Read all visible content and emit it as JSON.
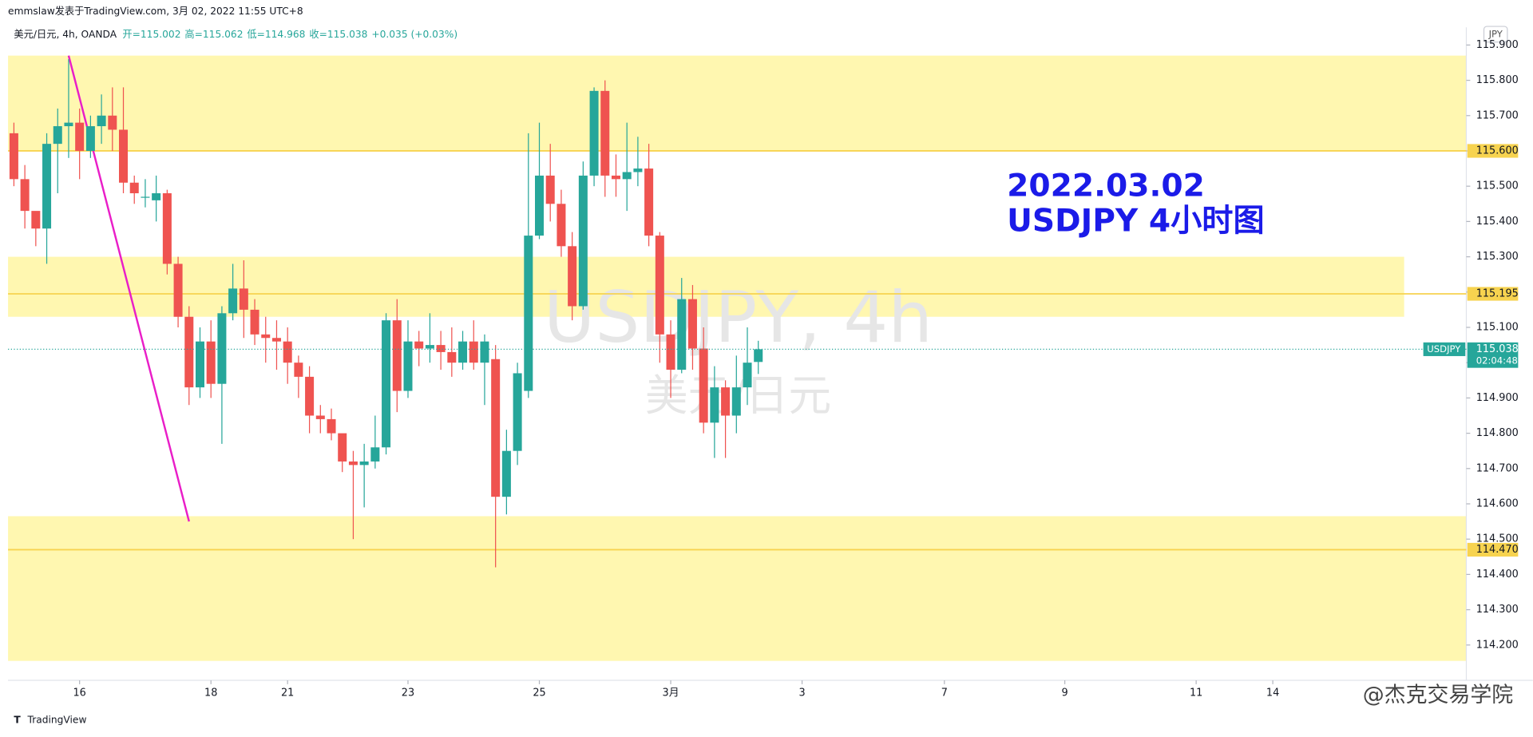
{
  "chart_data": {
    "type": "candlestick",
    "header": "emmslaw发表于TradingView.com, 3月 02, 2022 11:55 UTC+8",
    "symbol_info": "美元/日元, 4h, OANDA",
    "ohlc_info": [
      "开=115.002",
      "高=115.062",
      "低=114.968",
      "收=115.038",
      "+0.035 (+0.03%)"
    ],
    "watermark": [
      "USDJPY, 4h",
      "美元/日元"
    ],
    "annotation": [
      "2022.03.02",
      "USDJPY 4小时图"
    ],
    "currency": "JPY",
    "footer": "TradingView",
    "credit": "@杰克交易学院",
    "up_color": "#26a69a",
    "down_color": "#ef5350",
    "open": [
      115.65,
      115.52,
      115.43,
      115.38,
      115.62,
      115.67,
      115.68,
      115.6,
      115.67,
      115.7,
      115.66,
      115.51,
      115.47,
      115.46,
      115.48,
      115.28,
      115.13,
      114.93,
      115.06,
      114.94,
      115.14,
      115.21,
      115.15,
      115.08,
      115.07,
      115.06,
      115.0,
      114.96,
      114.85,
      114.84,
      114.8,
      114.72,
      114.71,
      114.72,
      114.76,
      115.12,
      114.92,
      115.06,
      115.04,
      115.05,
      115.03,
      115.0,
      115.06,
      115.0,
      115.01,
      114.62,
      114.75,
      114.92,
      115.36,
      115.53,
      115.45,
      115.33,
      115.16,
      115.53,
      115.77,
      115.53,
      115.52,
      115.54,
      115.55,
      115.36,
      115.08,
      114.98,
      115.18,
      115.04,
      114.83,
      114.93,
      114.85,
      114.93,
      115.002
    ],
    "high": [
      115.68,
      115.56,
      115.42,
      115.65,
      115.72,
      115.86,
      115.72,
      115.7,
      115.76,
      115.78,
      115.78,
      115.53,
      115.52,
      115.53,
      115.49,
      115.3,
      115.16,
      115.1,
      115.12,
      115.16,
      115.28,
      115.29,
      115.18,
      115.13,
      115.12,
      115.1,
      115.02,
      114.99,
      114.88,
      114.87,
      114.79,
      114.75,
      114.77,
      114.85,
      115.14,
      115.18,
      115.12,
      115.09,
      115.14,
      115.09,
      115.1,
      115.09,
      115.12,
      115.08,
      115.05,
      114.81,
      115.0,
      115.65,
      115.68,
      115.62,
      115.49,
      115.37,
      115.57,
      115.78,
      115.8,
      115.59,
      115.68,
      115.64,
      115.62,
      115.37,
      115.12,
      115.24,
      115.22,
      115.1,
      114.99,
      114.95,
      115.02,
      115.1,
      115.062
    ],
    "low": [
      115.5,
      115.38,
      115.33,
      115.28,
      115.48,
      115.58,
      115.52,
      115.58,
      115.62,
      115.6,
      115.48,
      115.45,
      115.44,
      115.4,
      115.25,
      115.1,
      114.88,
      114.9,
      114.9,
      114.77,
      115.12,
      115.07,
      115.05,
      115.0,
      114.98,
      114.94,
      114.9,
      114.8,
      114.8,
      114.78,
      114.69,
      114.5,
      114.59,
      114.7,
      114.74,
      114.86,
      114.9,
      114.99,
      115.0,
      114.98,
      114.96,
      114.98,
      114.98,
      114.88,
      114.42,
      114.57,
      114.71,
      114.9,
      115.35,
      115.4,
      115.3,
      115.12,
      115.15,
      115.5,
      115.47,
      115.47,
      115.43,
      115.5,
      115.33,
      115.0,
      114.9,
      114.97,
      114.98,
      114.8,
      114.73,
      114.73,
      114.8,
      114.88,
      114.968
    ],
    "close": [
      115.52,
      115.43,
      115.38,
      115.62,
      115.67,
      115.68,
      115.6,
      115.67,
      115.7,
      115.66,
      115.51,
      115.48,
      115.47,
      115.48,
      115.28,
      115.13,
      114.93,
      115.06,
      114.94,
      115.14,
      115.21,
      115.15,
      115.08,
      115.07,
      115.06,
      115.0,
      114.96,
      114.85,
      114.84,
      114.8,
      114.72,
      114.71,
      114.72,
      114.76,
      115.12,
      114.92,
      115.06,
      115.04,
      115.05,
      115.03,
      115.0,
      115.06,
      115.0,
      115.06,
      114.62,
      114.75,
      114.97,
      115.36,
      115.53,
      115.45,
      115.33,
      115.16,
      115.53,
      115.77,
      115.53,
      115.52,
      115.54,
      115.55,
      115.36,
      115.08,
      114.98,
      115.18,
      115.04,
      114.83,
      114.93,
      114.85,
      114.93,
      115.0,
      115.038
    ],
    "last_price": {
      "name": "USDJPY",
      "value": 115.038,
      "label": "115.038",
      "countdown": "02:04:48",
      "color": "#26a69a"
    },
    "levels": [
      {
        "value": 115.6,
        "label": "115.600"
      },
      {
        "value": 115.195,
        "label": "115.195"
      },
      {
        "value": 114.47,
        "label": "114.470"
      }
    ],
    "level_color": "#f7d34f",
    "zones": [
      {
        "lo": 115.6,
        "hi": 115.87
      },
      {
        "lo": 115.13,
        "hi": 115.3,
        "end": 127
      },
      {
        "lo": 114.155,
        "hi": 114.565
      }
    ],
    "zone_color": "#fff7b0",
    "trendline": {
      "x": [
        5,
        16
      ],
      "y": [
        115.87,
        114.55
      ],
      "color": "#e91ec8"
    },
    "ylim": [
      114.1,
      115.95
    ],
    "yticks": [
      {
        "value": 115.9,
        "label": "115.900"
      },
      {
        "value": 115.8,
        "label": "115.800"
      },
      {
        "value": 115.7,
        "label": "115.700"
      },
      {
        "value": 115.6,
        "label": "115.600"
      },
      {
        "value": 115.5,
        "label": "115.500"
      },
      {
        "value": 115.4,
        "label": "115.400"
      },
      {
        "value": 115.3,
        "label": "115.300"
      },
      {
        "value": 115.2,
        "label": "115.200"
      },
      {
        "value": 115.1,
        "label": "115.100"
      },
      {
        "value": 115.0,
        "label": "115.000"
      },
      {
        "value": 114.9,
        "label": "114.900"
      },
      {
        "value": 114.8,
        "label": "114.800"
      },
      {
        "value": 114.7,
        "label": "114.700"
      },
      {
        "value": 114.6,
        "label": "114.600"
      },
      {
        "value": 114.5,
        "label": "114.500"
      },
      {
        "value": 114.4,
        "label": "114.400"
      },
      {
        "value": 114.3,
        "label": "114.300"
      },
      {
        "value": 114.2,
        "label": "114.200"
      }
    ],
    "xticks": [
      {
        "value": 6,
        "label": "16"
      },
      {
        "value": 18,
        "label": "18"
      },
      {
        "value": 25,
        "label": "21"
      },
      {
        "value": 36,
        "label": "23"
      },
      {
        "value": 48,
        "label": "25"
      },
      {
        "value": 60,
        "label": "3月"
      },
      {
        "value": 72,
        "label": "3"
      },
      {
        "value": 85,
        "label": "7"
      },
      {
        "value": 96,
        "label": "9"
      },
      {
        "value": 108,
        "label": "11"
      },
      {
        "value": 115,
        "label": "14"
      }
    ]
  }
}
